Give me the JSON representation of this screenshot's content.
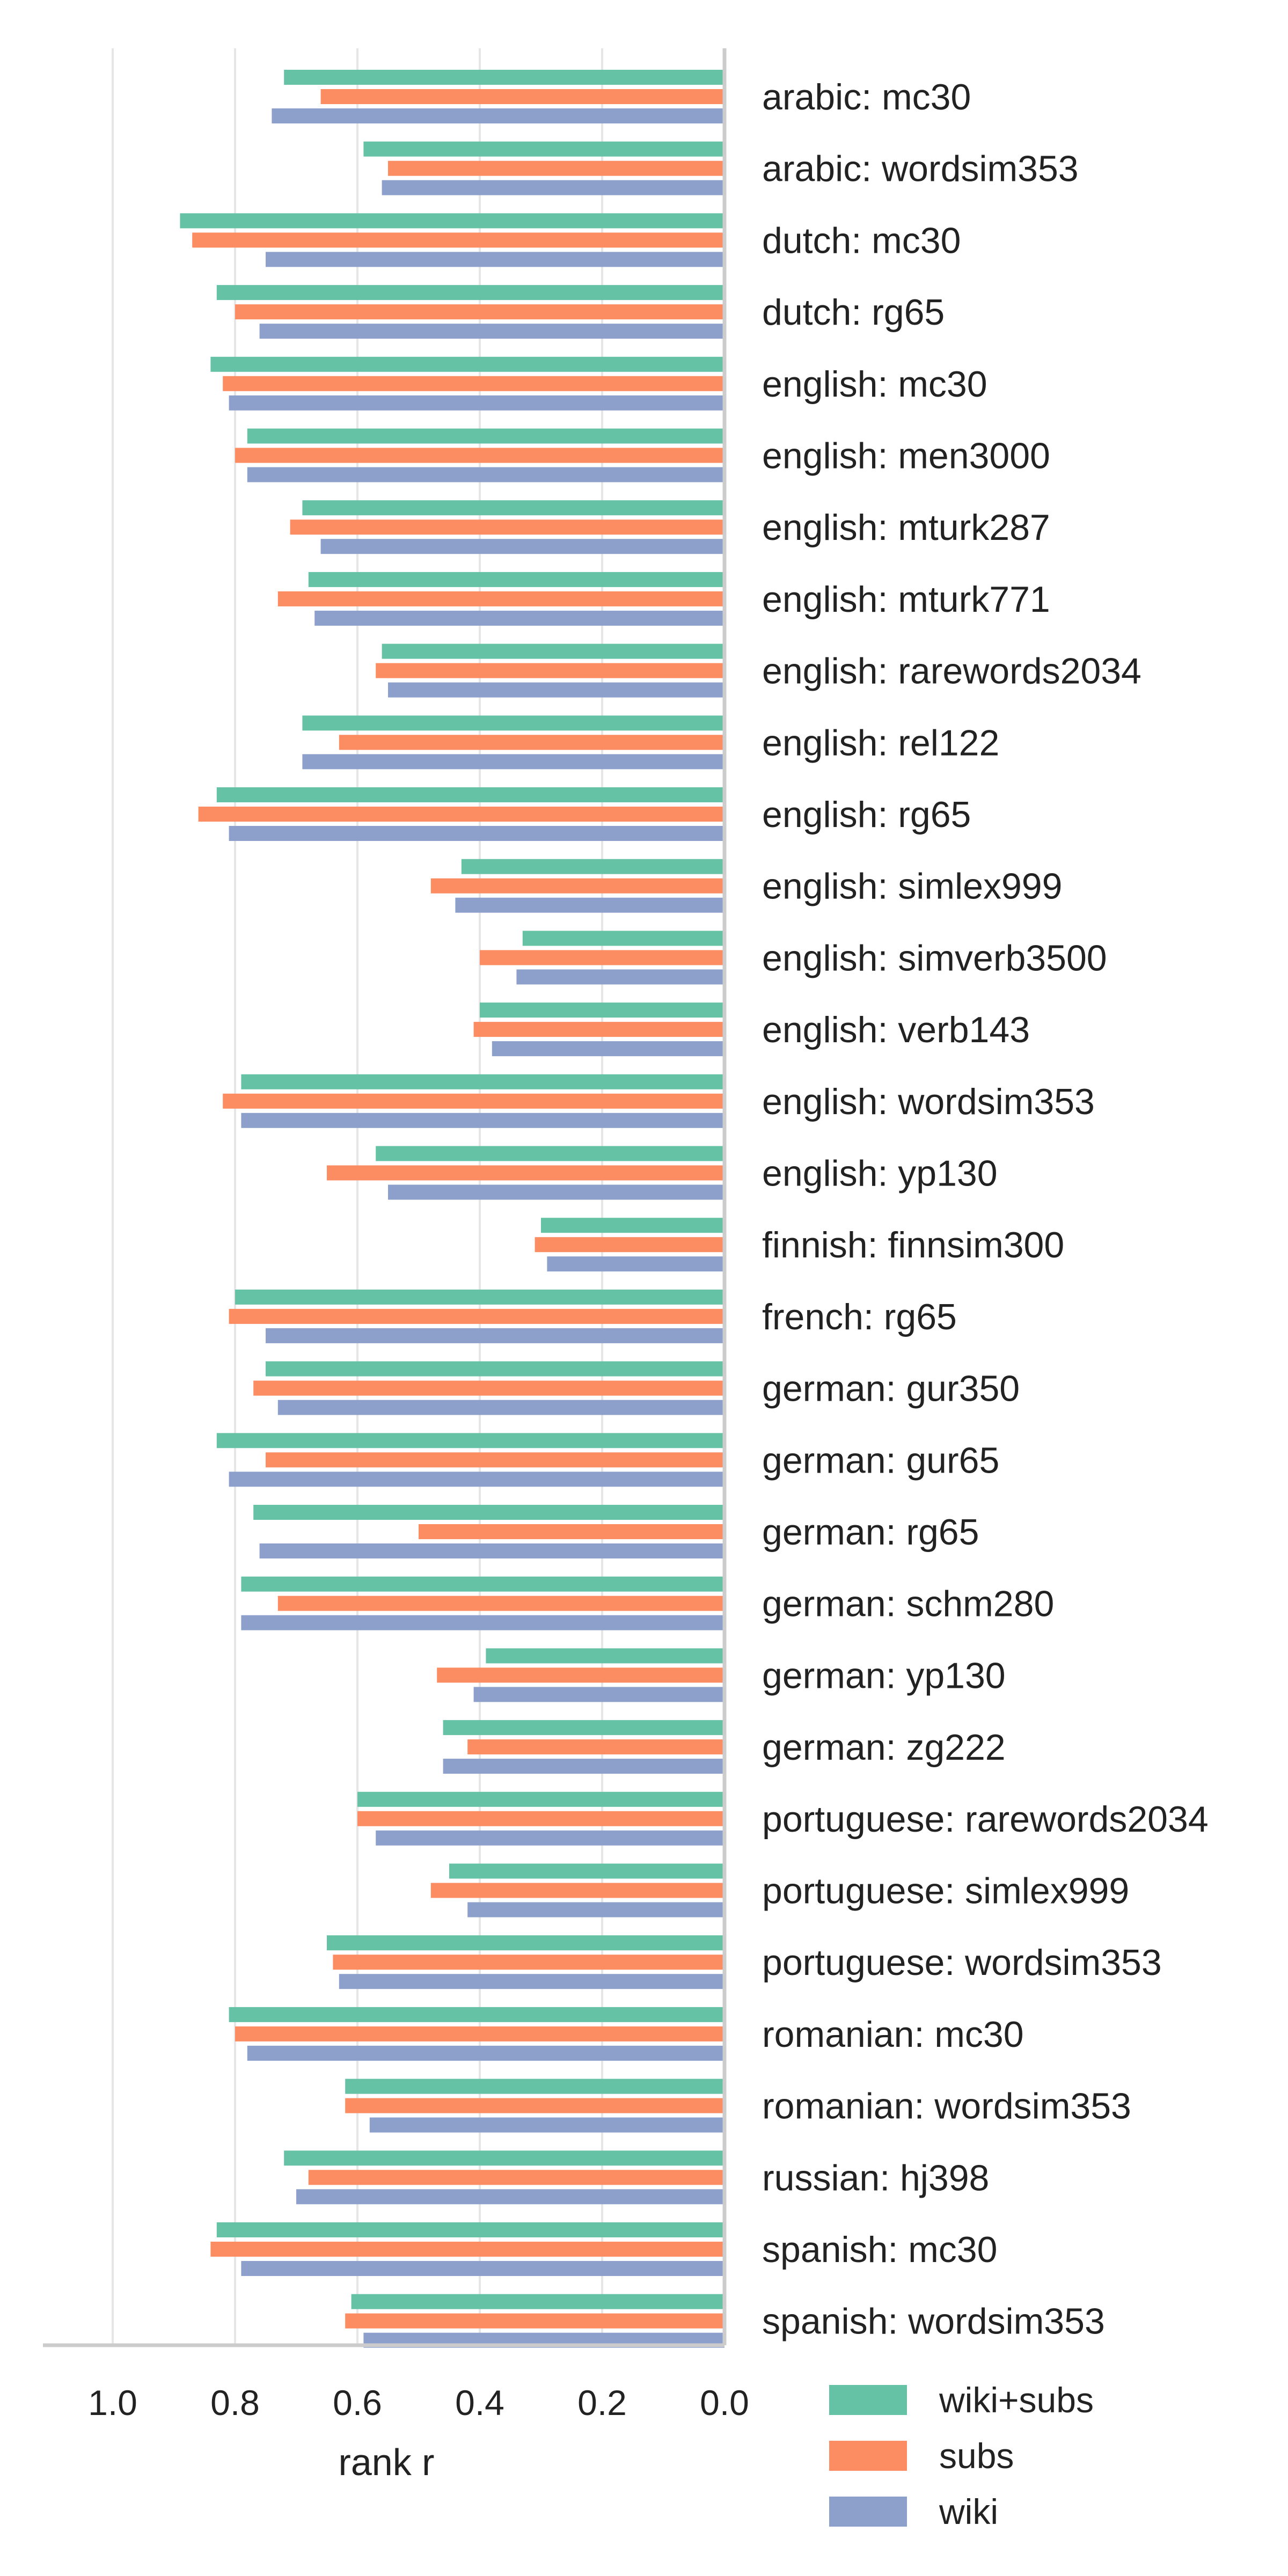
{
  "chart_data": {
    "type": "bar",
    "orientation": "horizontal",
    "xlabel": "rank r",
    "xlim": [
      1.1,
      0.0
    ],
    "x_reversed": true,
    "xticks": [
      "1.0",
      "0.8",
      "0.6",
      "0.4",
      "0.2",
      "0.0"
    ],
    "grid": "vertical-lines",
    "legend_placement": "bottom-right",
    "categories": [
      "arabic: mc30",
      "arabic: wordsim353",
      "dutch: mc30",
      "dutch: rg65",
      "english: mc30",
      "english: men3000",
      "english: mturk287",
      "english: mturk771",
      "english: rarewords2034",
      "english: rel122",
      "english: rg65",
      "english: simlex999",
      "english: simverb3500",
      "english: verb143",
      "english: wordsim353",
      "english: yp130",
      "finnish: finnsim300",
      "french: rg65",
      "german: gur350",
      "german: gur65",
      "german: rg65",
      "german: schm280",
      "german: yp130",
      "german: zg222",
      "portuguese: rarewords2034",
      "portuguese: simlex999",
      "portuguese: wordsim353",
      "romanian: mc30",
      "romanian: wordsim353",
      "russian: hj398",
      "spanish: mc30",
      "spanish: wordsim353"
    ],
    "series": [
      {
        "name": "wiki+subs",
        "color": "#66c2a5",
        "values": [
          0.72,
          0.59,
          0.89,
          0.83,
          0.84,
          0.78,
          0.69,
          0.68,
          0.56,
          0.69,
          0.83,
          0.43,
          0.33,
          0.4,
          0.79,
          0.57,
          0.3,
          0.8,
          0.75,
          0.83,
          0.77,
          0.79,
          0.39,
          0.46,
          0.6,
          0.45,
          0.65,
          0.81,
          0.62,
          0.72,
          0.83,
          0.61
        ]
      },
      {
        "name": "subs",
        "color": "#fc8d62",
        "values": [
          0.66,
          0.55,
          0.87,
          0.8,
          0.82,
          0.8,
          0.71,
          0.73,
          0.57,
          0.63,
          0.86,
          0.48,
          0.4,
          0.41,
          0.82,
          0.65,
          0.31,
          0.81,
          0.77,
          0.75,
          0.5,
          0.73,
          0.47,
          0.42,
          0.6,
          0.48,
          0.64,
          0.8,
          0.62,
          0.68,
          0.84,
          0.62
        ]
      },
      {
        "name": "wiki",
        "color": "#8da0cb",
        "values": [
          0.74,
          0.56,
          0.75,
          0.76,
          0.81,
          0.78,
          0.66,
          0.67,
          0.55,
          0.69,
          0.81,
          0.44,
          0.34,
          0.38,
          0.79,
          0.55,
          0.29,
          0.75,
          0.73,
          0.81,
          0.76,
          0.79,
          0.41,
          0.46,
          0.57,
          0.42,
          0.63,
          0.78,
          0.58,
          0.7,
          0.79,
          0.59
        ]
      }
    ]
  }
}
